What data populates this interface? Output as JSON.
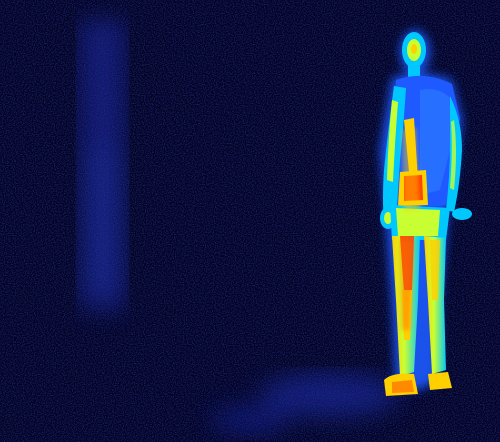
{
  "image": {
    "kind": "thermal-camera-frame",
    "subject": "standing-person",
    "palette": {
      "background": "#00001e",
      "cold": "#0a1a8a",
      "cool": "#1e5aff",
      "mid": "#00c8ff",
      "warm": "#c8ff32",
      "hot": "#ffd000",
      "hottest": "#ff3a00"
    }
  }
}
